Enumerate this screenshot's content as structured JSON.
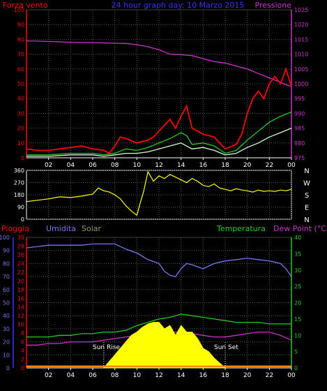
{
  "colors": {
    "background": "#000000",
    "grid": "#555555",
    "axis_white": "#ffffff",
    "red": "#ff0000",
    "magenta": "#cc33cc",
    "blue": "#3333ff",
    "green": "#22cc22",
    "lightgreen": "#ccffcc",
    "yellow": "#ffff00",
    "periwinkle": "#7777ee",
    "olive": "#999966",
    "orange": "#ff8800"
  },
  "chart_data": [
    {
      "type": "line",
      "panel": "wind",
      "title": "24 hour graph day: 10 Marzo 2015",
      "y_left_label": "Forza vento",
      "y_right_label": "Pressione",
      "x_ticks": [
        "02",
        "04",
        "06",
        "08",
        "10",
        "12",
        "14",
        "16",
        "18",
        "20",
        "22",
        "00"
      ],
      "x_range": [
        0,
        24
      ],
      "y_left_ticks": [
        0,
        10,
        20,
        30,
        40,
        50,
        60,
        70,
        80,
        90,
        100
      ],
      "ylim_left": [
        0,
        100
      ],
      "y_right_ticks": [
        975,
        980,
        985,
        990,
        995,
        1000,
        1005,
        1010,
        1015,
        1020,
        1025
      ],
      "ylim_right": [
        975,
        1025
      ],
      "grid": true,
      "series": [
        {
          "axis": "right",
          "color": "#cc33cc",
          "x": [
            0,
            2,
            4,
            6,
            7,
            8,
            9,
            10,
            11,
            12,
            13,
            14,
            15,
            16,
            17,
            18,
            19,
            20,
            21,
            22,
            23,
            24
          ],
          "y": [
            1014.5,
            1014.3,
            1014.0,
            1013.9,
            1013.8,
            1013.7,
            1013.6,
            1013.2,
            1012.5,
            1011.5,
            1010.0,
            1009.8,
            1009.5,
            1008.5,
            1007.5,
            1007.0,
            1006.0,
            1005.0,
            1003.5,
            1002.0,
            1000.5,
            999.0
          ]
        },
        {
          "axis": "left",
          "color": "#ff0000",
          "x": [
            0,
            1,
            2,
            3,
            4,
            5,
            6,
            7,
            7.5,
            8,
            8.5,
            9,
            10,
            11,
            11.5,
            12,
            12.5,
            13,
            13.5,
            14,
            14.5,
            15,
            15.5,
            16,
            17,
            18,
            19,
            19.5,
            20,
            20.5,
            21,
            21.5,
            22,
            22.5,
            23,
            23.5,
            24
          ],
          "y": [
            6,
            5,
            5,
            6,
            7,
            8,
            6,
            5,
            3,
            8,
            14,
            13,
            10,
            12,
            14,
            18,
            22,
            26,
            20,
            28,
            35,
            20,
            18,
            16,
            14,
            6,
            9,
            16,
            30,
            40,
            45,
            40,
            50,
            55,
            50,
            60,
            48
          ]
        },
        {
          "axis": "left",
          "color": "#22cc22",
          "x": [
            0,
            2,
            4,
            6,
            7,
            8,
            9,
            10,
            11,
            12,
            13,
            14,
            14.5,
            15,
            16,
            17,
            18,
            19,
            20,
            21,
            22,
            23,
            24
          ],
          "y": [
            2,
            2,
            3,
            3,
            2,
            3,
            6,
            5,
            7,
            10,
            13,
            17,
            15,
            9,
            10,
            8,
            3,
            5,
            12,
            18,
            24,
            28,
            31
          ]
        },
        {
          "axis": "left",
          "color": "#ccffcc",
          "x": [
            0,
            2,
            4,
            6,
            7,
            8,
            9,
            10,
            11,
            12,
            13,
            14,
            15,
            16,
            17,
            18,
            19,
            20,
            21,
            22,
            23,
            24
          ],
          "y": [
            1,
            1,
            2,
            2,
            1,
            2,
            3,
            3,
            4,
            6,
            8,
            10,
            6,
            7,
            5,
            2,
            3,
            7,
            10,
            14,
            17,
            20
          ]
        }
      ]
    },
    {
      "type": "line",
      "panel": "direction",
      "x_ticks": [
        "02",
        "04",
        "06",
        "08",
        "10",
        "12",
        "14",
        "16",
        "18",
        "20",
        "22",
        "00"
      ],
      "x_range": [
        0,
        24
      ],
      "y_ticks": [
        0,
        90,
        180,
        270,
        360
      ],
      "ylim": [
        0,
        360
      ],
      "y_right_labels": [
        "N",
        "W",
        "S",
        "E",
        "N"
      ],
      "grid": true,
      "series": [
        {
          "color": "#ffff00",
          "x": [
            0,
            1,
            2,
            3,
            4,
            5,
            6,
            6.5,
            7,
            7.5,
            8,
            8.5,
            9,
            9.5,
            10,
            10.3,
            10.6,
            11,
            11.5,
            12,
            12.5,
            13,
            13.5,
            14,
            14.5,
            15,
            15.5,
            16,
            16.5,
            17,
            17.5,
            18,
            18.5,
            19,
            19.5,
            20,
            20.5,
            21,
            21.5,
            22,
            22.5,
            23,
            23.5,
            24
          ],
          "y": [
            130,
            140,
            150,
            165,
            160,
            170,
            185,
            230,
            210,
            200,
            180,
            150,
            100,
            60,
            30,
            120,
            200,
            350,
            280,
            320,
            300,
            330,
            310,
            290,
            270,
            300,
            280,
            250,
            240,
            260,
            230,
            220,
            210,
            225,
            215,
            210,
            200,
            215,
            205,
            210,
            205,
            215,
            210,
            220
          ]
        }
      ]
    },
    {
      "type": "line",
      "panel": "humidity_temp_solar",
      "y_left_outer_label": "Pioggia",
      "y_left_inner_label": "Umidita",
      "y_left_third_label": "Solar",
      "y_right_inner_label": "Temperatura",
      "y_right_outer_label": "Dew Point (°C)",
      "annotations": [
        "Sun Rise",
        "Sun Set"
      ],
      "x_ticks": [
        "02",
        "04",
        "06",
        "08",
        "10",
        "12",
        "14",
        "16",
        "18",
        "20",
        "22",
        "00"
      ],
      "x_range": [
        0,
        24
      ],
      "y_left_outer_ticks": [
        0,
        10,
        20,
        30,
        40,
        50,
        60,
        70,
        80,
        90,
        100
      ],
      "y_left_inner_ticks": [
        0,
        2,
        4,
        6,
        8,
        10,
        12,
        14,
        16,
        18,
        20,
        22,
        24,
        26,
        28,
        30
      ],
      "y_right_ticks": [
        0,
        5,
        10,
        15,
        20,
        25,
        30,
        35,
        40
      ],
      "ylim_humidity": [
        0,
        100
      ],
      "ylim_temp": [
        0,
        40
      ],
      "grid": true,
      "series": [
        {
          "axis": "humidity",
          "color": "#7777ee",
          "x": [
            0,
            1,
            2,
            3,
            4,
            5,
            6,
            7,
            8,
            9,
            10,
            11,
            12,
            12.5,
            13,
            13.5,
            14,
            14.5,
            15,
            16,
            17,
            18,
            19,
            20,
            21,
            22,
            23,
            23.5,
            24
          ],
          "y": [
            92,
            93,
            94,
            94,
            94,
            94,
            95,
            95,
            95,
            91,
            88,
            83,
            80,
            74,
            71,
            70,
            76,
            80,
            79,
            76,
            80,
            82,
            83,
            84,
            83,
            82,
            80,
            76,
            70
          ]
        },
        {
          "axis": "temp",
          "color": "#22cc22",
          "x": [
            0,
            1,
            2,
            3,
            4,
            5,
            6,
            7,
            8,
            9,
            10,
            11,
            12,
            13,
            14,
            15,
            16,
            17,
            18,
            19,
            20,
            21,
            22,
            23,
            24
          ],
          "y": [
            9.5,
            9.5,
            9.5,
            10,
            10,
            10.5,
            10.5,
            11,
            11,
            11.5,
            13,
            14,
            15,
            15.5,
            16.5,
            16,
            15.5,
            15,
            14.5,
            14,
            14,
            14,
            13.5,
            13.5,
            13.5
          ]
        },
        {
          "axis": "temp",
          "color": "#cc33cc",
          "x": [
            0,
            1,
            2,
            3,
            4,
            5,
            6,
            7,
            8,
            9,
            10,
            11,
            12,
            13,
            14,
            15,
            16,
            17,
            18,
            19,
            20,
            21,
            22,
            23,
            24
          ],
          "y": [
            7,
            7,
            7.5,
            7.5,
            8,
            8,
            8,
            8.5,
            9,
            9.5,
            10,
            10.5,
            11,
            11,
            11,
            10.5,
            10,
            9.5,
            9.5,
            10,
            10.5,
            11,
            11,
            10,
            8.5
          ]
        },
        {
          "axis": "temp",
          "color": "#ffff00",
          "fill": true,
          "x": [
            7,
            7.5,
            8,
            8.5,
            9,
            9.5,
            10,
            10.5,
            11,
            11.5,
            12,
            12.5,
            13,
            13.5,
            14,
            14.5,
            15,
            15.5,
            16,
            16.5,
            17,
            17.5,
            18
          ],
          "y": [
            0,
            2,
            4,
            6,
            8,
            10,
            11,
            12.5,
            13.5,
            14,
            14,
            12,
            13,
            10,
            13,
            11,
            11,
            9,
            6,
            5,
            3,
            1.5,
            0
          ]
        },
        {
          "axis": "temp",
          "color": "#ff8800",
          "x": [
            0,
            24
          ],
          "y": [
            0.5,
            0.5
          ]
        }
      ]
    }
  ]
}
